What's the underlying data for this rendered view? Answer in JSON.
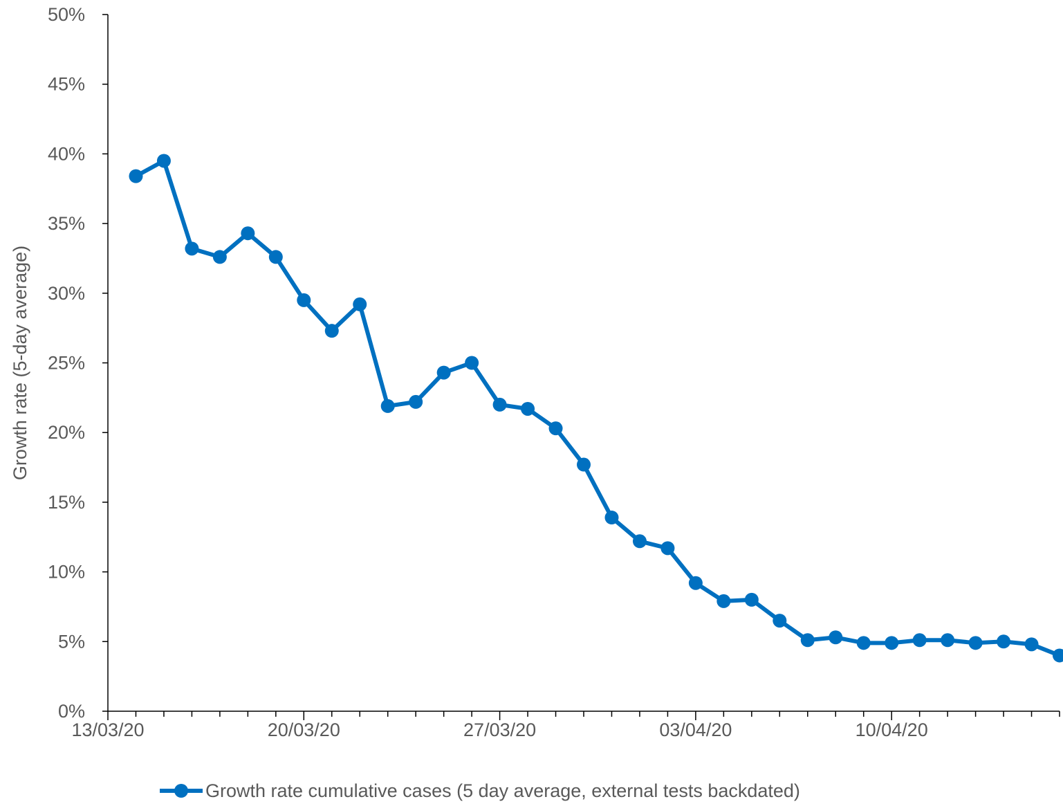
{
  "chart_data": {
    "type": "line",
    "title": "",
    "xlabel": "",
    "ylabel": "Growth rate (5-day average)",
    "ylim": [
      0,
      0.5
    ],
    "yticks": [
      0,
      0.05,
      0.1,
      0.15,
      0.2,
      0.25,
      0.3,
      0.35,
      0.4,
      0.45,
      0.5
    ],
    "ytick_labels": [
      "0%",
      "5%",
      "10%",
      "15%",
      "20%",
      "25%",
      "30%",
      "35%",
      "40%",
      "45%",
      "50%"
    ],
    "xlim": [
      "13/03/20",
      "16/04/20"
    ],
    "xtick_labels": [
      "13/03/20",
      "20/03/20",
      "27/03/20",
      "03/04/20",
      "10/04/20"
    ],
    "grid": false,
    "legend_position": "bottom",
    "colors": {
      "series": "#0070C0",
      "axis": "#000000",
      "text": "#595959"
    },
    "series": [
      {
        "name": "Growth rate cumulative cases (5 day average, external tests backdated)",
        "x": [
          "14/03/20",
          "15/03/20",
          "16/03/20",
          "17/03/20",
          "18/03/20",
          "19/03/20",
          "20/03/20",
          "21/03/20",
          "22/03/20",
          "23/03/20",
          "24/03/20",
          "25/03/20",
          "26/03/20",
          "27/03/20",
          "28/03/20",
          "29/03/20",
          "30/03/20",
          "31/03/20",
          "01/04/20",
          "02/04/20",
          "03/04/20",
          "04/04/20",
          "05/04/20",
          "06/04/20",
          "07/04/20",
          "08/04/20",
          "09/04/20",
          "10/04/20",
          "11/04/20",
          "12/04/20",
          "13/04/20",
          "14/04/20",
          "15/04/20",
          "16/04/20"
        ],
        "values": [
          0.384,
          0.395,
          0.332,
          0.326,
          0.343,
          0.326,
          0.295,
          0.273,
          0.292,
          0.219,
          0.222,
          0.243,
          0.25,
          0.22,
          0.217,
          0.203,
          0.177,
          0.139,
          0.122,
          0.117,
          0.092,
          0.079,
          0.08,
          0.065,
          0.051,
          0.053,
          0.049,
          0.049,
          0.051,
          0.051,
          0.049,
          0.05,
          0.048,
          0.04
        ]
      }
    ]
  }
}
